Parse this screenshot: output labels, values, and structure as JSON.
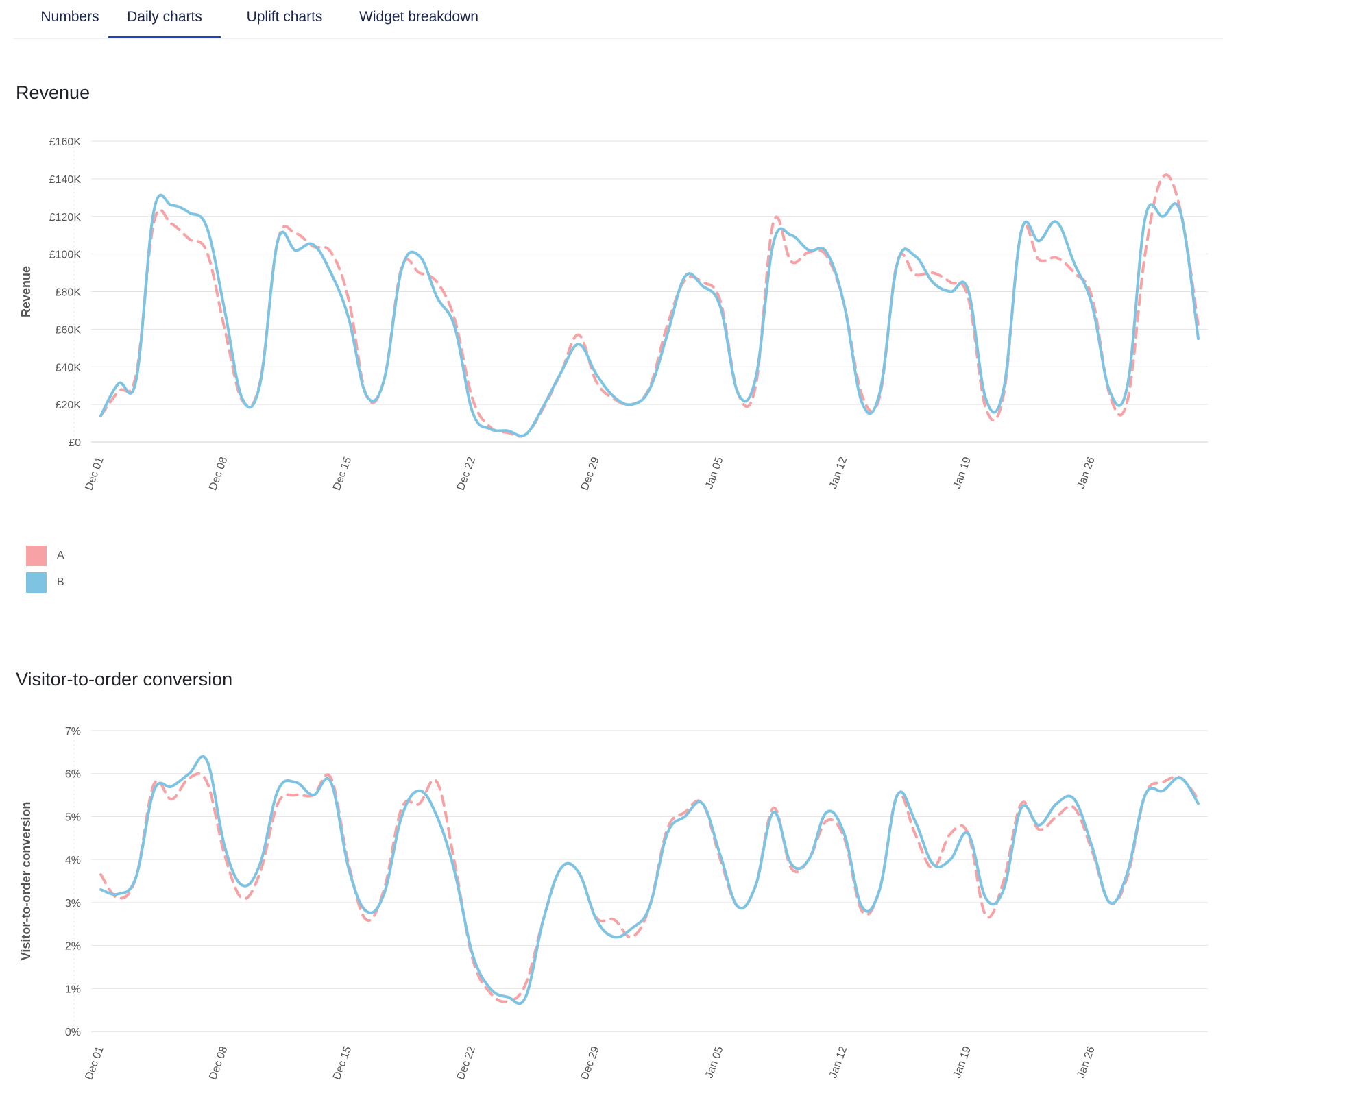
{
  "tabs": [
    {
      "label": "Numbers",
      "active": false
    },
    {
      "label": "Daily charts",
      "active": true
    },
    {
      "label": "Uplift charts",
      "active": false
    },
    {
      "label": "Widget breakdown",
      "active": false
    }
  ],
  "colors": {
    "A": "#f7a3a6",
    "B": "#7ec4e2",
    "tab_active": "#1a44c6",
    "grid": "#e3e3e3"
  },
  "legend": [
    {
      "label": "A",
      "color": "#f7a3a6"
    },
    {
      "label": "B",
      "color": "#7ec4e2"
    }
  ],
  "charts": {
    "revenue": {
      "title": "Revenue"
    },
    "conversion": {
      "title": "Visitor-to-order conversion"
    }
  },
  "chart_data": [
    {
      "type": "line",
      "title": "Revenue",
      "ylabel": "Revenue",
      "ylim": [
        0,
        160000
      ],
      "yticks": [
        {
          "value": 0,
          "label": "£0"
        },
        {
          "value": 20000,
          "label": "£20K"
        },
        {
          "value": 40000,
          "label": "£40K"
        },
        {
          "value": 60000,
          "label": "£60K"
        },
        {
          "value": 80000,
          "label": "£80K"
        },
        {
          "value": 100000,
          "label": "£100K"
        },
        {
          "value": 120000,
          "label": "£120K"
        },
        {
          "value": 140000,
          "label": "£140K"
        },
        {
          "value": 160000,
          "label": "£160K"
        }
      ],
      "xticks": [
        "Dec 01",
        "Dec 08",
        "Dec 15",
        "Dec 22",
        "Dec 29",
        "Jan 05",
        "Jan 12",
        "Jan 19",
        "Jan 26"
      ],
      "x": [
        "Dec 01",
        "Dec 02",
        "Dec 03",
        "Dec 04",
        "Dec 05",
        "Dec 06",
        "Dec 07",
        "Dec 08",
        "Dec 09",
        "Dec 10",
        "Dec 11",
        "Dec 12",
        "Dec 13",
        "Dec 14",
        "Dec 15",
        "Dec 16",
        "Dec 17",
        "Dec 18",
        "Dec 19",
        "Dec 20",
        "Dec 21",
        "Dec 22",
        "Dec 23",
        "Dec 24",
        "Dec 25",
        "Dec 26",
        "Dec 27",
        "Dec 28",
        "Dec 29",
        "Dec 30",
        "Dec 31",
        "Jan 01",
        "Jan 02",
        "Jan 03",
        "Jan 04",
        "Jan 05",
        "Jan 06",
        "Jan 07",
        "Jan 08",
        "Jan 09",
        "Jan 10",
        "Jan 11",
        "Jan 12",
        "Jan 13",
        "Jan 14",
        "Jan 15",
        "Jan 16",
        "Jan 17",
        "Jan 18",
        "Jan 19",
        "Jan 20",
        "Jan 21",
        "Jan 22",
        "Jan 23",
        "Jan 24",
        "Jan 25",
        "Jan 26",
        "Jan 27",
        "Jan 28",
        "Jan 29",
        "Jan 30",
        "Jan 31",
        "Feb 01"
      ],
      "series": [
        {
          "name": "A",
          "dashed": true,
          "values": [
            14000,
            27000,
            36000,
            117000,
            116000,
            108000,
            101000,
            60000,
            22000,
            32000,
            107000,
            111000,
            104000,
            101000,
            76000,
            25000,
            33000,
            93000,
            90000,
            85000,
            65000,
            23000,
            8000,
            5000,
            4000,
            18000,
            37000,
            57000,
            32000,
            23000,
            20000,
            29000,
            62000,
            86000,
            85000,
            75000,
            26000,
            30000,
            117000,
            96000,
            101000,
            99000,
            73000,
            25000,
            24000,
            96000,
            89000,
            90000,
            85000,
            77000,
            18000,
            25000,
            112000,
            97000,
            98000,
            90000,
            77000,
            25000,
            22000,
            100000,
            141000,
            123000,
            62000
          ]
        },
        {
          "name": "B",
          "dashed": false,
          "values": [
            14000,
            31000,
            33000,
            123000,
            126000,
            122000,
            114000,
            70000,
            23000,
            31000,
            107000,
            102000,
            105000,
            90000,
            66000,
            25000,
            33000,
            92000,
            99000,
            77000,
            61000,
            16000,
            7000,
            6000,
            4000,
            19000,
            37000,
            52000,
            36000,
            24000,
            20000,
            28000,
            57000,
            88000,
            83000,
            72000,
            26000,
            34000,
            106000,
            110000,
            102000,
            101000,
            73000,
            21000,
            26000,
            95000,
            99000,
            85000,
            80000,
            81000,
            23000,
            28000,
            112000,
            107000,
            117000,
            95000,
            73000,
            27000,
            30000,
            119000,
            120000,
            122000,
            55000
          ]
        }
      ]
    },
    {
      "type": "line",
      "title": "Visitor-to-order conversion",
      "ylabel": "Visitor-to-order conversion",
      "ylim": [
        0,
        7
      ],
      "yticks": [
        {
          "value": 0,
          "label": "0%"
        },
        {
          "value": 1,
          "label": "1%"
        },
        {
          "value": 2,
          "label": "2%"
        },
        {
          "value": 3,
          "label": "3%"
        },
        {
          "value": 4,
          "label": "4%"
        },
        {
          "value": 5,
          "label": "5%"
        },
        {
          "value": 6,
          "label": "6%"
        },
        {
          "value": 7,
          "label": "7%"
        }
      ],
      "xticks": [
        "Dec 01",
        "Dec 08",
        "Dec 15",
        "Dec 22",
        "Dec 29",
        "Jan 05",
        "Jan 12",
        "Jan 19",
        "Jan 26"
      ],
      "x": [
        "Dec 01",
        "Dec 02",
        "Dec 03",
        "Dec 04",
        "Dec 05",
        "Dec 06",
        "Dec 07",
        "Dec 08",
        "Dec 09",
        "Dec 10",
        "Dec 11",
        "Dec 12",
        "Dec 13",
        "Dec 14",
        "Dec 15",
        "Dec 16",
        "Dec 17",
        "Dec 18",
        "Dec 19",
        "Dec 20",
        "Dec 21",
        "Dec 22",
        "Dec 23",
        "Dec 24",
        "Dec 25",
        "Dec 26",
        "Dec 27",
        "Dec 28",
        "Dec 29",
        "Dec 30",
        "Dec 31",
        "Jan 01",
        "Jan 02",
        "Jan 03",
        "Jan 04",
        "Jan 05",
        "Jan 06",
        "Jan 07",
        "Jan 08",
        "Jan 09",
        "Jan 10",
        "Jan 11",
        "Jan 12",
        "Jan 13",
        "Jan 14",
        "Jan 15",
        "Jan 16",
        "Jan 17",
        "Jan 18",
        "Jan 19",
        "Jan 20",
        "Jan 21",
        "Jan 22",
        "Jan 23",
        "Jan 24",
        "Jan 25",
        "Jan 26",
        "Jan 27",
        "Jan 28",
        "Jan 29",
        "Jan 30",
        "Jan 31",
        "Feb 01"
      ],
      "series": [
        {
          "name": "A",
          "dashed": true,
          "values": [
            3.65,
            3.1,
            3.6,
            5.75,
            5.4,
            5.9,
            5.8,
            4.1,
            3.1,
            3.7,
            5.3,
            5.5,
            5.5,
            5.9,
            3.9,
            2.6,
            3.3,
            5.2,
            5.3,
            5.8,
            3.9,
            1.7,
            0.9,
            0.7,
            1.1,
            2.6,
            3.8,
            3.7,
            2.65,
            2.6,
            2.2,
            2.9,
            4.7,
            5.1,
            5.3,
            4.0,
            2.9,
            3.4,
            5.2,
            3.8,
            4.0,
            4.9,
            4.5,
            2.8,
            3.3,
            5.5,
            4.6,
            3.8,
            4.6,
            4.6,
            2.7,
            3.5,
            5.3,
            4.7,
            5.0,
            5.2,
            4.2,
            3.0,
            3.6,
            5.5,
            5.8,
            5.9,
            5.4
          ]
        },
        {
          "name": "B",
          "dashed": false,
          "values": [
            3.3,
            3.2,
            3.6,
            5.6,
            5.7,
            6.0,
            6.3,
            4.3,
            3.4,
            3.9,
            5.6,
            5.8,
            5.5,
            5.8,
            3.8,
            2.8,
            3.2,
            5.0,
            5.6,
            5.0,
            3.7,
            1.8,
            1.0,
            0.8,
            0.8,
            2.6,
            3.8,
            3.7,
            2.6,
            2.2,
            2.4,
            2.9,
            4.6,
            5.0,
            5.3,
            4.1,
            2.9,
            3.4,
            5.1,
            3.9,
            4.0,
            5.1,
            4.6,
            2.9,
            3.3,
            5.5,
            4.9,
            3.9,
            4.0,
            4.6,
            3.1,
            3.3,
            5.2,
            4.8,
            5.3,
            5.4,
            4.3,
            3.0,
            3.7,
            5.5,
            5.6,
            5.9,
            5.3
          ]
        }
      ]
    }
  ]
}
